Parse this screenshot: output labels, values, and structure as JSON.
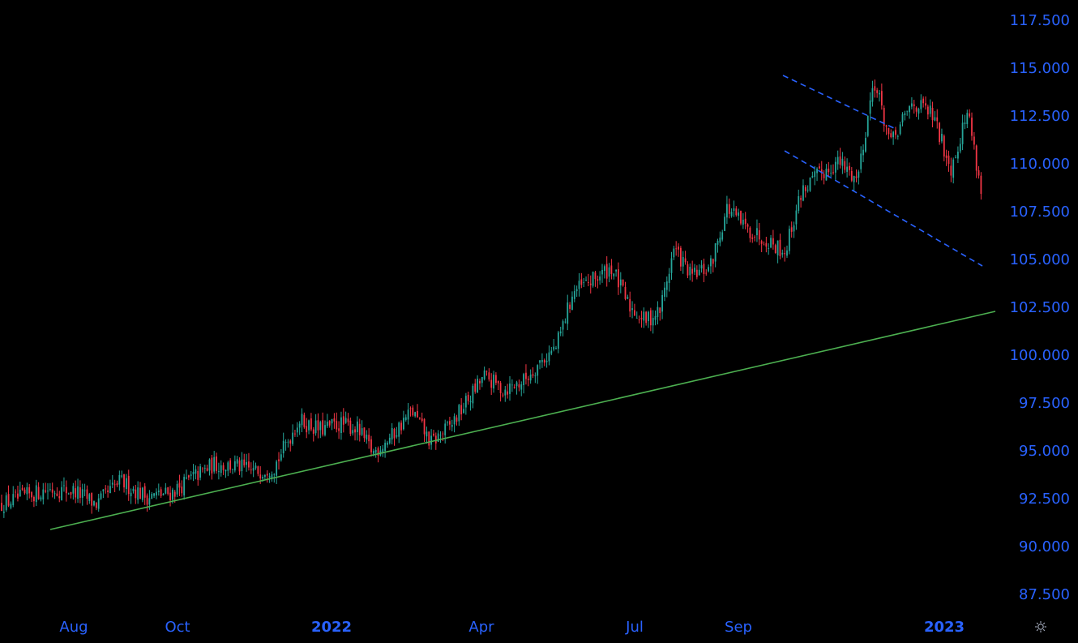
{
  "chart_data": {
    "type": "candlestick",
    "title": "",
    "y_axis": {
      "position": "right",
      "ticks": [
        "117.500",
        "115.000",
        "112.500",
        "110.000",
        "107.500",
        "105.000",
        "102.500",
        "100.000",
        "97.500",
        "95.000",
        "92.500",
        "90.000",
        "87.500"
      ],
      "range": [
        86.5,
        118.2
      ]
    },
    "x_axis": {
      "ticks": [
        {
          "label": "Aug",
          "date": "2021-08",
          "bold": false
        },
        {
          "label": "Oct",
          "date": "2021-10",
          "bold": false
        },
        {
          "label": "2022",
          "date": "2022-01",
          "bold": true
        },
        {
          "label": "Apr",
          "date": "2022-04",
          "bold": false
        },
        {
          "label": "Jul",
          "date": "2022-07",
          "bold": false
        },
        {
          "label": "Sep",
          "date": "2022-09",
          "bold": false
        },
        {
          "label": "2023",
          "date": "2023-01",
          "bold": true
        }
      ],
      "range": [
        "2021-06-20",
        "2023-03-26"
      ]
    },
    "approx_close_path": [
      [
        "2021-06-20",
        92.2
      ],
      [
        "2021-07-05",
        92.6
      ],
      [
        "2021-07-20",
        93.0
      ],
      [
        "2021-08-01",
        92.9
      ],
      [
        "2021-08-15",
        92.2
      ],
      [
        "2021-08-28",
        93.4
      ],
      [
        "2021-09-12",
        92.6
      ],
      [
        "2021-09-25",
        92.8
      ],
      [
        "2021-10-10",
        93.6
      ],
      [
        "2021-10-20",
        94.3
      ],
      [
        "2021-11-01",
        94.2
      ],
      [
        "2021-11-12",
        93.9
      ],
      [
        "2021-11-28",
        94.2
      ],
      [
        "2021-12-10",
        96.6
      ],
      [
        "2021-12-24",
        96.1
      ],
      [
        "2022-01-10",
        96.4
      ],
      [
        "2022-01-25",
        96.2
      ],
      [
        "2022-02-04",
        94.9
      ],
      [
        "2022-02-16",
        95.8
      ],
      [
        "2022-02-26",
        97.1
      ],
      [
        "2022-03-08",
        95.4
      ],
      [
        "2022-03-22",
        96.3
      ],
      [
        "2022-04-06",
        97.6
      ],
      [
        "2022-04-16",
        98.9
      ],
      [
        "2022-04-30",
        98.2
      ],
      [
        "2022-05-12",
        98.6
      ],
      [
        "2022-05-28",
        99.6
      ],
      [
        "2022-06-10",
        100.4
      ],
      [
        "2022-06-24",
        103.3
      ],
      [
        "2022-07-08",
        103.9
      ],
      [
        "2022-07-18",
        104.6
      ],
      [
        "2022-07-28",
        102.6
      ],
      [
        "2022-08-10",
        101.8
      ],
      [
        "2022-08-24",
        102.3
      ],
      [
        "2022-09-06",
        105.6
      ],
      [
        "2022-09-20",
        104.1
      ],
      [
        "2022-10-04",
        104.6
      ],
      [
        "2022-10-16",
        107.7
      ],
      [
        "2022-10-30",
        106.6
      ],
      [
        "2022-11-12",
        106.1
      ],
      [
        "2022-11-24",
        105.4
      ],
      [
        "2022-12-06",
        108.6
      ],
      [
        "2022-12-20",
        109.4
      ],
      [
        "2023-01-02",
        110.1
      ],
      [
        "2023-01-12",
        109.2
      ],
      [
        "2023-01-22",
        114.4
      ],
      [
        "2023-02-01",
        111.0
      ],
      [
        "2023-02-12",
        113.2
      ],
      [
        "2023-02-22",
        112.6
      ],
      [
        "2023-03-02",
        109.8
      ],
      [
        "2023-03-12",
        112.8
      ],
      [
        "2023-03-26",
        108.2
      ]
    ],
    "colors": {
      "up": "#26a69a",
      "down": "#f23645",
      "axis_text": "#2962ff",
      "support_line": "#4caf50",
      "channel_lines": "#2962ff"
    }
  }
}
